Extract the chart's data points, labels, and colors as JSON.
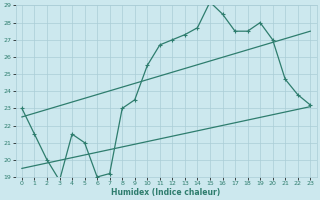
{
  "xlabel": "Humidex (Indice chaleur)",
  "xlim": [
    -0.5,
    23.5
  ],
  "ylim": [
    19,
    29
  ],
  "xticks": [
    0,
    1,
    2,
    3,
    4,
    5,
    6,
    7,
    8,
    9,
    10,
    11,
    12,
    13,
    14,
    15,
    16,
    17,
    18,
    19,
    20,
    21,
    22,
    23
  ],
  "yticks": [
    19,
    20,
    21,
    22,
    23,
    24,
    25,
    26,
    27,
    28,
    29
  ],
  "bg_color": "#cce8ee",
  "grid_color": "#aacdd6",
  "line_color": "#2e7d6e",
  "line1_x": [
    0,
    1,
    2,
    3,
    4,
    5,
    6,
    7,
    8,
    9,
    10,
    11,
    12,
    13,
    14,
    15,
    16,
    17,
    18,
    19,
    20,
    21,
    22,
    23
  ],
  "line1_y": [
    23.0,
    21.5,
    20.0,
    18.8,
    21.5,
    21.0,
    19.0,
    19.2,
    23.0,
    23.5,
    25.5,
    26.7,
    27.0,
    27.3,
    27.7,
    29.2,
    28.5,
    27.5,
    27.5,
    28.0,
    27.0,
    24.7,
    23.8,
    23.2
  ],
  "line2_x": [
    0,
    23
  ],
  "line2_y": [
    22.5,
    27.5
  ],
  "line3_x": [
    0,
    23
  ],
  "line3_y": [
    19.5,
    23.1
  ]
}
